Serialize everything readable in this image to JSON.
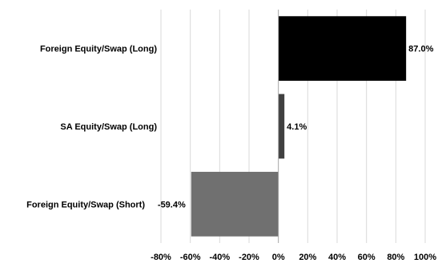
{
  "chart_data": {
    "type": "bar",
    "orientation": "horizontal",
    "categories": [
      "Foreign Equity/Swap (Long)",
      "SA Equity/Swap (Long)",
      "Foreign Equity/Swap (Short)"
    ],
    "values": [
      87.0,
      4.1,
      -59.4
    ],
    "data_labels": [
      "87.0%",
      "4.1%",
      "-59.4%"
    ],
    "bar_colors": [
      "#000000",
      "#404040",
      "#707070"
    ],
    "xlim": [
      -80,
      100
    ],
    "xticks": [
      -80,
      -60,
      -40,
      -20,
      0,
      20,
      40,
      60,
      80,
      100
    ],
    "xtick_labels": [
      "-80%",
      "-60%",
      "-40%",
      "-20%",
      "0%",
      "20%",
      "40%",
      "60%",
      "80%",
      "100%"
    ],
    "grid": "vertical",
    "grid_color": "#d9d9d9",
    "axis_color": "#a6a6a6",
    "legend": "none"
  }
}
